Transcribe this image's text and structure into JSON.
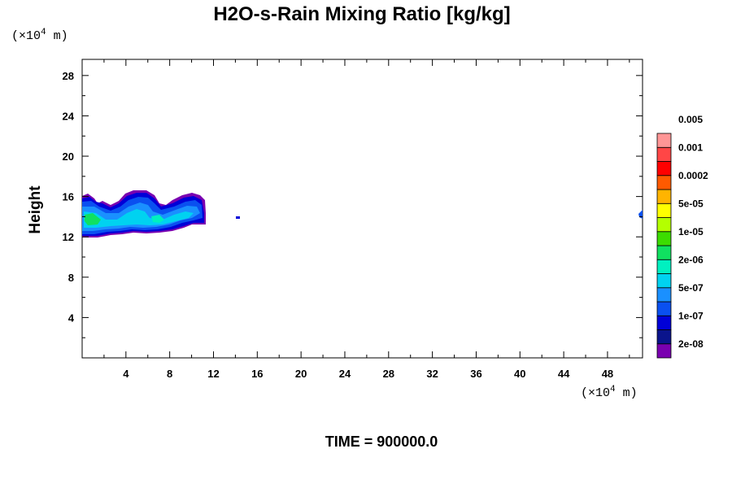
{
  "chart_data": {
    "type": "heatmap",
    "title": "H2O-s-Rain Mixing Ratio [kg/kg]",
    "ylabel": "Height",
    "x_unit": "(×10^4 m)",
    "y_unit": "(×10^4 m)",
    "unit_prefix": "(×10",
    "unit_exp": "4",
    "unit_suffix": " m)",
    "xlim": [
      0,
      51.2
    ],
    "ylim": [
      0,
      29.6
    ],
    "x_ticks": [
      "4",
      "8",
      "12",
      "16",
      "20",
      "24",
      "28",
      "32",
      "36",
      "40",
      "44",
      "48"
    ],
    "y_ticks": [
      "4",
      "8",
      "12",
      "16",
      "20",
      "24",
      "28"
    ],
    "colorbar": {
      "colors": [
        "#7a00b0",
        "#0a148c",
        "#0000d8",
        "#0a50f0",
        "#1a90ff",
        "#00d2f0",
        "#00f0c0",
        "#10e060",
        "#3cdc00",
        "#b4ff00",
        "#ffff00",
        "#ffb400",
        "#ff5a00",
        "#ff0000",
        "#ff4646",
        "#ff9696"
      ],
      "labels": [
        "2e-08",
        "1e-07",
        "5e-07",
        "2e-06",
        "1e-05",
        "5e-05",
        "0.0002",
        "0.001",
        "0.005"
      ]
    },
    "footer": "TIME = 900000.0",
    "grid": false
  }
}
